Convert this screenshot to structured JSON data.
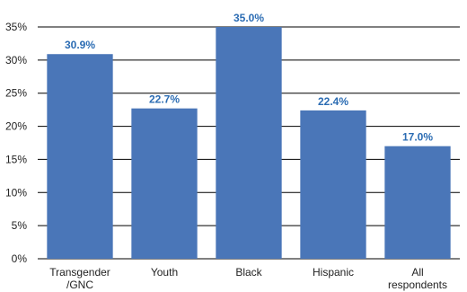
{
  "chart_data": {
    "type": "bar",
    "categories": [
      [
        "Transgender",
        "/GNC"
      ],
      [
        "Youth"
      ],
      [
        "Black"
      ],
      [
        "Hispanic"
      ],
      [
        "All",
        "respondents"
      ]
    ],
    "values": [
      30.9,
      22.7,
      35.0,
      22.4,
      17.0
    ],
    "data_labels": [
      "30.9%",
      "22.7%",
      "35.0%",
      "22.4%",
      "17.0%"
    ],
    "y_ticks": [
      "0%",
      "5%",
      "10%",
      "15%",
      "20%",
      "25%",
      "30%",
      "35%"
    ],
    "ylim": [
      0,
      35
    ],
    "y_tick_values": [
      0,
      5,
      10,
      15,
      20,
      25,
      30,
      35
    ],
    "grid": true,
    "legend": "none",
    "title": "",
    "xlabel": "",
    "ylabel": "",
    "colors": {
      "bar": "#4a76b8",
      "data_label": "#2b6cb3",
      "grid": "#000000"
    }
  }
}
